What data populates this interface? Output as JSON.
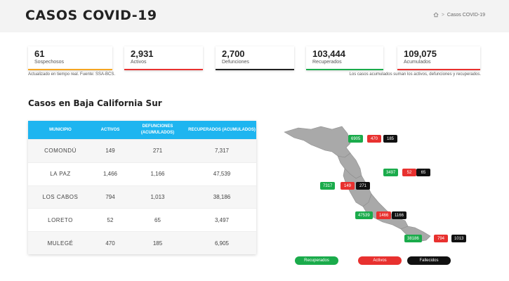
{
  "header": {
    "title": "CASOS COVID-19",
    "breadcrumb_current": "Casos COVID-19",
    "breadcrumb_separator": ">"
  },
  "stats": [
    {
      "value": "61",
      "label": "Sospechosos",
      "color": "#f5a623"
    },
    {
      "value": "2,931",
      "label": "Activos",
      "color": "#e8312f"
    },
    {
      "value": "2,700",
      "label": "Defunciones",
      "color": "#222222"
    },
    {
      "value": "103,444",
      "label": "Recuperados",
      "color": "#1aab4b"
    },
    {
      "value": "109,075",
      "label": "Acumulados",
      "color": "#e8312f"
    }
  ],
  "notes": {
    "left": "Actualizado en tiempo real. Fuente: SSA-BCS.",
    "right": "Los casos acumulados suman los activos, defunciones y recuperados."
  },
  "section_title": "Casos en Baja California Sur",
  "table": {
    "headers": [
      "MUNICIPIO",
      "ACTIVOS",
      "DEFUNCIONES (ACUMULADOS)",
      "RECUPERADOS (ACUMULADOS)"
    ],
    "rows": [
      [
        "COMONDÚ",
        "149",
        "271",
        "7,317"
      ],
      [
        "LA PAZ",
        "1,466",
        "1,166",
        "47,539"
      ],
      [
        "LOS CABOS",
        "794",
        "1,013",
        "38,186"
      ],
      [
        "LORETO",
        "52",
        "65",
        "3,497"
      ],
      [
        "MULEGÉ",
        "470",
        "185",
        "6,905"
      ]
    ]
  },
  "map_badges": {
    "mulege": [
      "6905",
      "470",
      "185"
    ],
    "loreto": [
      "3497",
      "52",
      "65"
    ],
    "comondu": [
      "7317",
      "149",
      "271"
    ],
    "lapaz": [
      "47539",
      "1466",
      "1166"
    ],
    "loscabos": [
      "38186",
      "794",
      "1013"
    ]
  },
  "legend": {
    "recuperados": "Recuperados",
    "activos": "Activos",
    "fallecidos": "Fallecidos"
  },
  "colors": {
    "accent_blue": "#1eb5f0",
    "green": "#1aab4b",
    "red": "#e8312f",
    "black": "#111111",
    "map_gray": "#a9a9a9"
  }
}
